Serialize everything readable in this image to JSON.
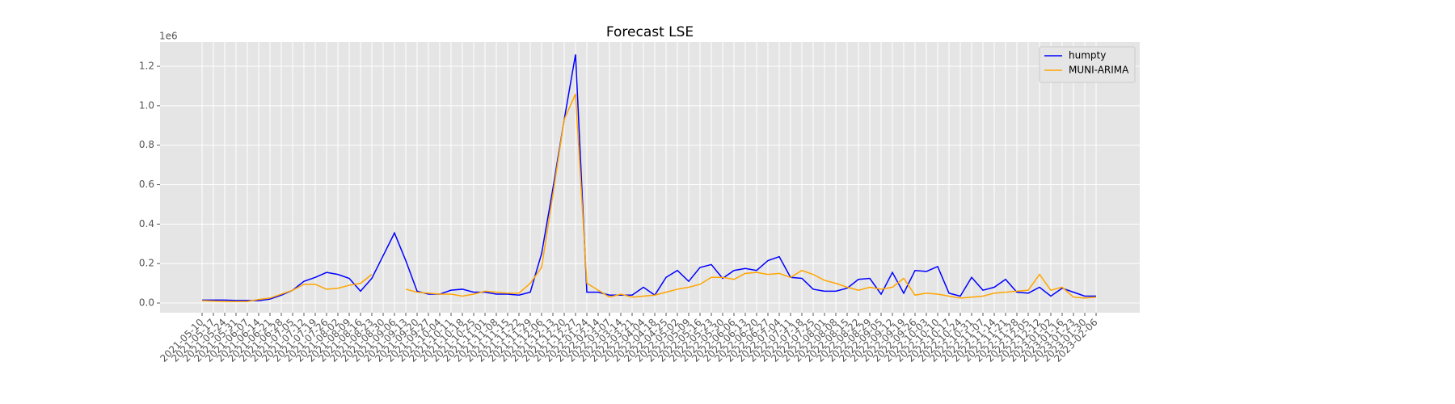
{
  "chart_data": {
    "type": "line",
    "title": "Forecast LSE",
    "y_offset_label": "1e6",
    "categories": [
      "2021-05-10",
      "2021-05-17",
      "2021-05-24",
      "2021-05-31",
      "2021-06-07",
      "2021-06-14",
      "2021-06-21",
      "2021-06-28",
      "2021-07-05",
      "2021-07-12",
      "2021-07-19",
      "2021-07-26",
      "2021-08-02",
      "2021-08-09",
      "2021-08-16",
      "2021-08-23",
      "2021-08-30",
      "2021-09-06",
      "2021-09-13",
      "2021-09-20",
      "2021-09-27",
      "2021-10-04",
      "2021-10-11",
      "2021-10-18",
      "2021-10-25",
      "2021-11-01",
      "2021-11-08",
      "2021-11-15",
      "2021-11-22",
      "2021-11-29",
      "2021-12-06",
      "2021-12-13",
      "2021-12-20",
      "2021-12-27",
      "2022-01-24",
      "2022-02-14",
      "2022-03-07",
      "2022-03-14",
      "2022-03-21",
      "2022-04-04",
      "2022-04-18",
      "2022-04-25",
      "2022-05-02",
      "2022-05-09",
      "2022-05-16",
      "2022-05-23",
      "2022-05-30",
      "2022-06-06",
      "2022-06-13",
      "2022-06-20",
      "2022-06-27",
      "2022-07-04",
      "2022-07-11",
      "2022-07-18",
      "2022-07-25",
      "2022-08-01",
      "2022-08-08",
      "2022-08-15",
      "2022-08-22",
      "2022-08-29",
      "2022-09-05",
      "2022-09-12",
      "2022-09-19",
      "2022-09-26",
      "2022-10-03",
      "2022-10-10",
      "2022-10-17",
      "2022-10-24",
      "2022-10-31",
      "2022-11-07",
      "2022-11-14",
      "2022-11-21",
      "2022-11-28",
      "2022-12-05",
      "2022-12-12",
      "2023-01-02",
      "2023-01-16",
      "2023-01-23",
      "2023-01-30",
      "2023-02-06"
    ],
    "series": [
      {
        "name": "humpty",
        "color": "#0000ff",
        "values": [
          15000,
          15000,
          15000,
          13000,
          13000,
          12000,
          20000,
          40000,
          65000,
          110000,
          130000,
          155000,
          145000,
          125000,
          60000,
          125000,
          240000,
          355000,
          215000,
          60000,
          45000,
          45000,
          65000,
          70000,
          55000,
          55000,
          45000,
          45000,
          40000,
          55000,
          250000,
          580000,
          930000,
          1260000,
          55000,
          55000,
          40000,
          40000,
          40000,
          80000,
          40000,
          130000,
          165000,
          110000,
          180000,
          195000,
          125000,
          165000,
          175000,
          165000,
          215000,
          235000,
          130000,
          125000,
          70000,
          60000,
          60000,
          75000,
          120000,
          125000,
          45000,
          155000,
          50000,
          165000,
          160000,
          185000,
          50000,
          35000,
          130000,
          65000,
          80000,
          120000,
          55000,
          50000,
          80000,
          35000,
          75000,
          55000,
          35000,
          35000
        ]
      },
      {
        "name": "MUNI-ARIMA",
        "color": "#ffa500",
        "values": [
          12000,
          10000,
          8000,
          8000,
          8000,
          18000,
          25000,
          45000,
          65000,
          95000,
          95000,
          70000,
          75000,
          90000,
          100000,
          145000,
          null,
          null,
          70000,
          55000,
          50000,
          45000,
          45000,
          35000,
          45000,
          60000,
          55000,
          50000,
          50000,
          100000,
          180000,
          550000,
          930000,
          1060000,
          100000,
          65000,
          30000,
          45000,
          30000,
          35000,
          40000,
          55000,
          70000,
          80000,
          95000,
          130000,
          130000,
          120000,
          150000,
          155000,
          145000,
          150000,
          130000,
          165000,
          145000,
          115000,
          100000,
          80000,
          65000,
          80000,
          70000,
          80000,
          125000,
          40000,
          50000,
          45000,
          35000,
          25000,
          30000,
          35000,
          50000,
          55000,
          60000,
          65000,
          145000,
          65000,
          80000,
          30000,
          25000,
          30000
        ]
      }
    ],
    "ylim": [
      -49000,
      1323000
    ],
    "yticks": [
      {
        "value": 0,
        "label": "0.0"
      },
      {
        "value": 200000,
        "label": "0.2"
      },
      {
        "value": 400000,
        "label": "0.4"
      },
      {
        "value": 600000,
        "label": "0.6"
      },
      {
        "value": 800000,
        "label": "0.8"
      },
      {
        "value": 1000000,
        "label": "1.0"
      },
      {
        "value": 1200000,
        "label": "1.2"
      }
    ],
    "grid": true,
    "legend": "upper right"
  }
}
